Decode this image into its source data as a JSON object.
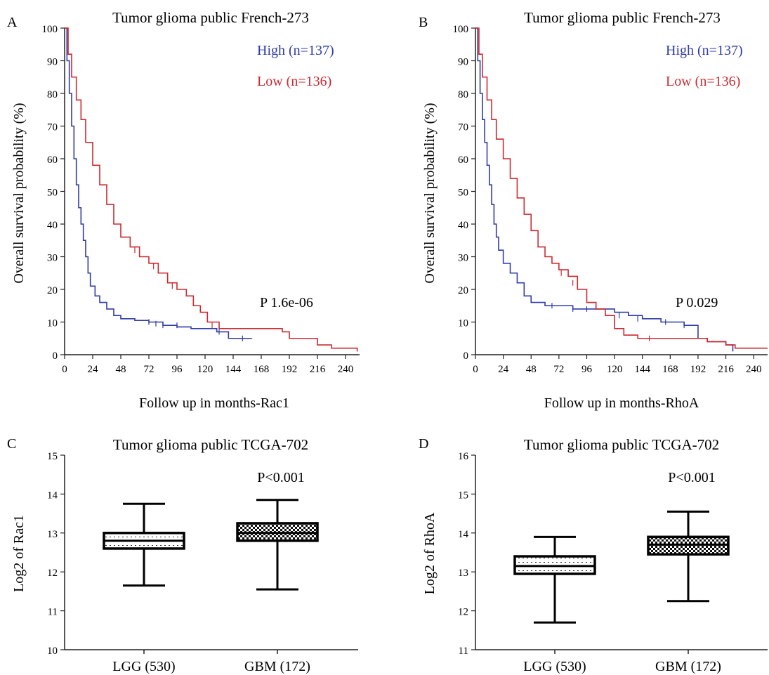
{
  "chart_data": [
    {
      "panel": "A",
      "type": "line",
      "title": "Tumor glioma public French-273",
      "xlabel": "Follow up in months-Rac1",
      "ylabel": "Overall survival probability (%)",
      "xlim": [
        0,
        252
      ],
      "ylim": [
        0,
        100
      ],
      "x_ticks": [
        "0",
        "24",
        "48",
        "72",
        "96",
        "120",
        "144",
        "168",
        "192",
        "216",
        "240"
      ],
      "y_ticks": [
        "0",
        "10",
        "20",
        "30",
        "40",
        "50",
        "60",
        "70",
        "80",
        "90",
        "100"
      ],
      "annotation": "P 1.6e-06",
      "legend_position": "top-right",
      "series": [
        {
          "name": "High (n=137)",
          "color": "#2f3ca8",
          "points": [
            [
              0,
              100
            ],
            [
              2,
              90
            ],
            [
              4,
              80
            ],
            [
              6,
              70
            ],
            [
              8,
              60
            ],
            [
              10,
              52
            ],
            [
              12,
              45
            ],
            [
              14,
              40
            ],
            [
              16,
              35
            ],
            [
              18,
              30
            ],
            [
              20,
              25
            ],
            [
              22,
              21
            ],
            [
              26,
              18
            ],
            [
              30,
              16
            ],
            [
              36,
              14
            ],
            [
              42,
              12
            ],
            [
              48,
              11
            ],
            [
              60,
              10.5
            ],
            [
              72,
              10
            ],
            [
              84,
              9
            ],
            [
              96,
              8.5
            ],
            [
              108,
              8
            ],
            [
              120,
              8
            ],
            [
              130,
              7
            ],
            [
              140,
              5
            ],
            [
              150,
              5
            ],
            [
              160,
              5
            ]
          ],
          "censors": [
            [
              72,
              10
            ],
            [
              78,
              9.5
            ],
            [
              84,
              9
            ],
            [
              96,
              9
            ],
            [
              132,
              7
            ],
            [
              152,
              5
            ]
          ]
        },
        {
          "name": "Low (n=136)",
          "color": "#cc2a30",
          "points": [
            [
              0,
              100
            ],
            [
              3,
              92
            ],
            [
              6,
              85
            ],
            [
              10,
              78
            ],
            [
              14,
              72
            ],
            [
              18,
              65
            ],
            [
              24,
              58
            ],
            [
              30,
              52
            ],
            [
              36,
              46
            ],
            [
              42,
              40
            ],
            [
              48,
              36
            ],
            [
              56,
              33
            ],
            [
              64,
              30
            ],
            [
              72,
              28
            ],
            [
              80,
              25
            ],
            [
              88,
              22
            ],
            [
              96,
              20
            ],
            [
              104,
              18
            ],
            [
              110,
              15
            ],
            [
              116,
              13
            ],
            [
              122,
              10
            ],
            [
              132,
              8
            ],
            [
              150,
              8
            ],
            [
              170,
              8
            ],
            [
              186,
              7
            ],
            [
              192,
              5
            ],
            [
              216,
              3
            ],
            [
              228,
              2
            ],
            [
              240,
              2
            ],
            [
              250,
              1
            ]
          ],
          "censors": [
            [
              60,
              32
            ],
            [
              76,
              27
            ],
            [
              92,
              21
            ],
            [
              126,
              9
            ]
          ]
        }
      ]
    },
    {
      "panel": "B",
      "type": "line",
      "title": "Tumor glioma public French-273",
      "xlabel": "Follow up in months-RhoA",
      "ylabel": "Overall survival probability (%)",
      "xlim": [
        0,
        252
      ],
      "ylim": [
        0,
        100
      ],
      "x_ticks": [
        "0",
        "24",
        "48",
        "72",
        "96",
        "120",
        "144",
        "168",
        "192",
        "216",
        "240"
      ],
      "y_ticks": [
        "0",
        "10",
        "20",
        "30",
        "40",
        "50",
        "60",
        "70",
        "80",
        "90",
        "100"
      ],
      "annotation": "P 0.029",
      "legend_position": "top-right",
      "series": [
        {
          "name": "High (n=137)",
          "color": "#2f3ca8",
          "points": [
            [
              0,
              100
            ],
            [
              2,
              90
            ],
            [
              4,
              80
            ],
            [
              6,
              72
            ],
            [
              8,
              65
            ],
            [
              10,
              58
            ],
            [
              12,
              52
            ],
            [
              14,
              46
            ],
            [
              16,
              40
            ],
            [
              18,
              36
            ],
            [
              20,
              32
            ],
            [
              24,
              28
            ],
            [
              30,
              25
            ],
            [
              36,
              22
            ],
            [
              42,
              18
            ],
            [
              48,
              16
            ],
            [
              60,
              15
            ],
            [
              72,
              15
            ],
            [
              84,
              14
            ],
            [
              96,
              14
            ],
            [
              108,
              14
            ],
            [
              120,
              13
            ],
            [
              132,
              12
            ],
            [
              144,
              11
            ],
            [
              160,
              10
            ],
            [
              180,
              9
            ],
            [
              190,
              9
            ],
            [
              192,
              5
            ],
            [
              200,
              4
            ],
            [
              216,
              3
            ],
            [
              222,
              1
            ]
          ],
          "censors": [
            [
              66,
              15
            ],
            [
              84,
              14
            ],
            [
              96,
              14
            ],
            [
              124,
              12
            ],
            [
              140,
              11
            ],
            [
              164,
              10
            ],
            [
              180,
              9
            ]
          ]
        },
        {
          "name": "Low (n=136)",
          "color": "#cc2a30",
          "points": [
            [
              0,
              100
            ],
            [
              3,
              92
            ],
            [
              6,
              85
            ],
            [
              10,
              78
            ],
            [
              14,
              72
            ],
            [
              18,
              66
            ],
            [
              24,
              60
            ],
            [
              30,
              54
            ],
            [
              36,
              48
            ],
            [
              42,
              43
            ],
            [
              48,
              38
            ],
            [
              54,
              33
            ],
            [
              60,
              30
            ],
            [
              66,
              28
            ],
            [
              72,
              26
            ],
            [
              80,
              24
            ],
            [
              88,
              20
            ],
            [
              96,
              16
            ],
            [
              104,
              14
            ],
            [
              112,
              12
            ],
            [
              120,
              8
            ],
            [
              128,
              6
            ],
            [
              140,
              5
            ],
            [
              160,
              5
            ],
            [
              180,
              5
            ],
            [
              200,
              4
            ],
            [
              216,
              3
            ],
            [
              224,
              2
            ],
            [
              240,
              2
            ],
            [
              252,
              2
            ]
          ],
          "censors": [
            [
              74,
              25
            ],
            [
              84,
              22
            ],
            [
              150,
              5
            ]
          ]
        }
      ]
    },
    {
      "panel": "C",
      "type": "box",
      "title": "Tumor glioma public TCGA-702",
      "xlabel": "",
      "ylabel": "Log2 of Rac1",
      "ylim": [
        10,
        15
      ],
      "y_ticks": [
        "10",
        "11",
        "12",
        "13",
        "14",
        "15"
      ],
      "annotation": "P<0.001",
      "categories": [
        "LGG (530)",
        "GBM (172)"
      ],
      "boxes": [
        {
          "label": "LGG (530)",
          "min": 11.65,
          "q1": 12.6,
          "median": 12.8,
          "q3": 13.0,
          "max": 13.75,
          "pattern": "light"
        },
        {
          "label": "GBM (172)",
          "min": 11.55,
          "q1": 12.8,
          "median": 13.0,
          "q3": 13.25,
          "max": 13.85,
          "pattern": "checker"
        }
      ]
    },
    {
      "panel": "D",
      "type": "box",
      "title": "Tumor glioma public TCGA-702",
      "xlabel": "",
      "ylabel": "Log2 of RhoA",
      "ylim": [
        11,
        16
      ],
      "y_ticks": [
        "11",
        "12",
        "13",
        "14",
        "15",
        "16"
      ],
      "annotation": "P<0.001",
      "categories": [
        "LGG (530)",
        "GBM (172)"
      ],
      "boxes": [
        {
          "label": "LGG (530)",
          "min": 11.7,
          "q1": 12.95,
          "median": 13.15,
          "q3": 13.4,
          "max": 13.9,
          "pattern": "light"
        },
        {
          "label": "GBM (172)",
          "min": 12.25,
          "q1": 13.45,
          "median": 13.7,
          "q3": 13.9,
          "max": 14.55,
          "pattern": "checker"
        }
      ]
    }
  ]
}
